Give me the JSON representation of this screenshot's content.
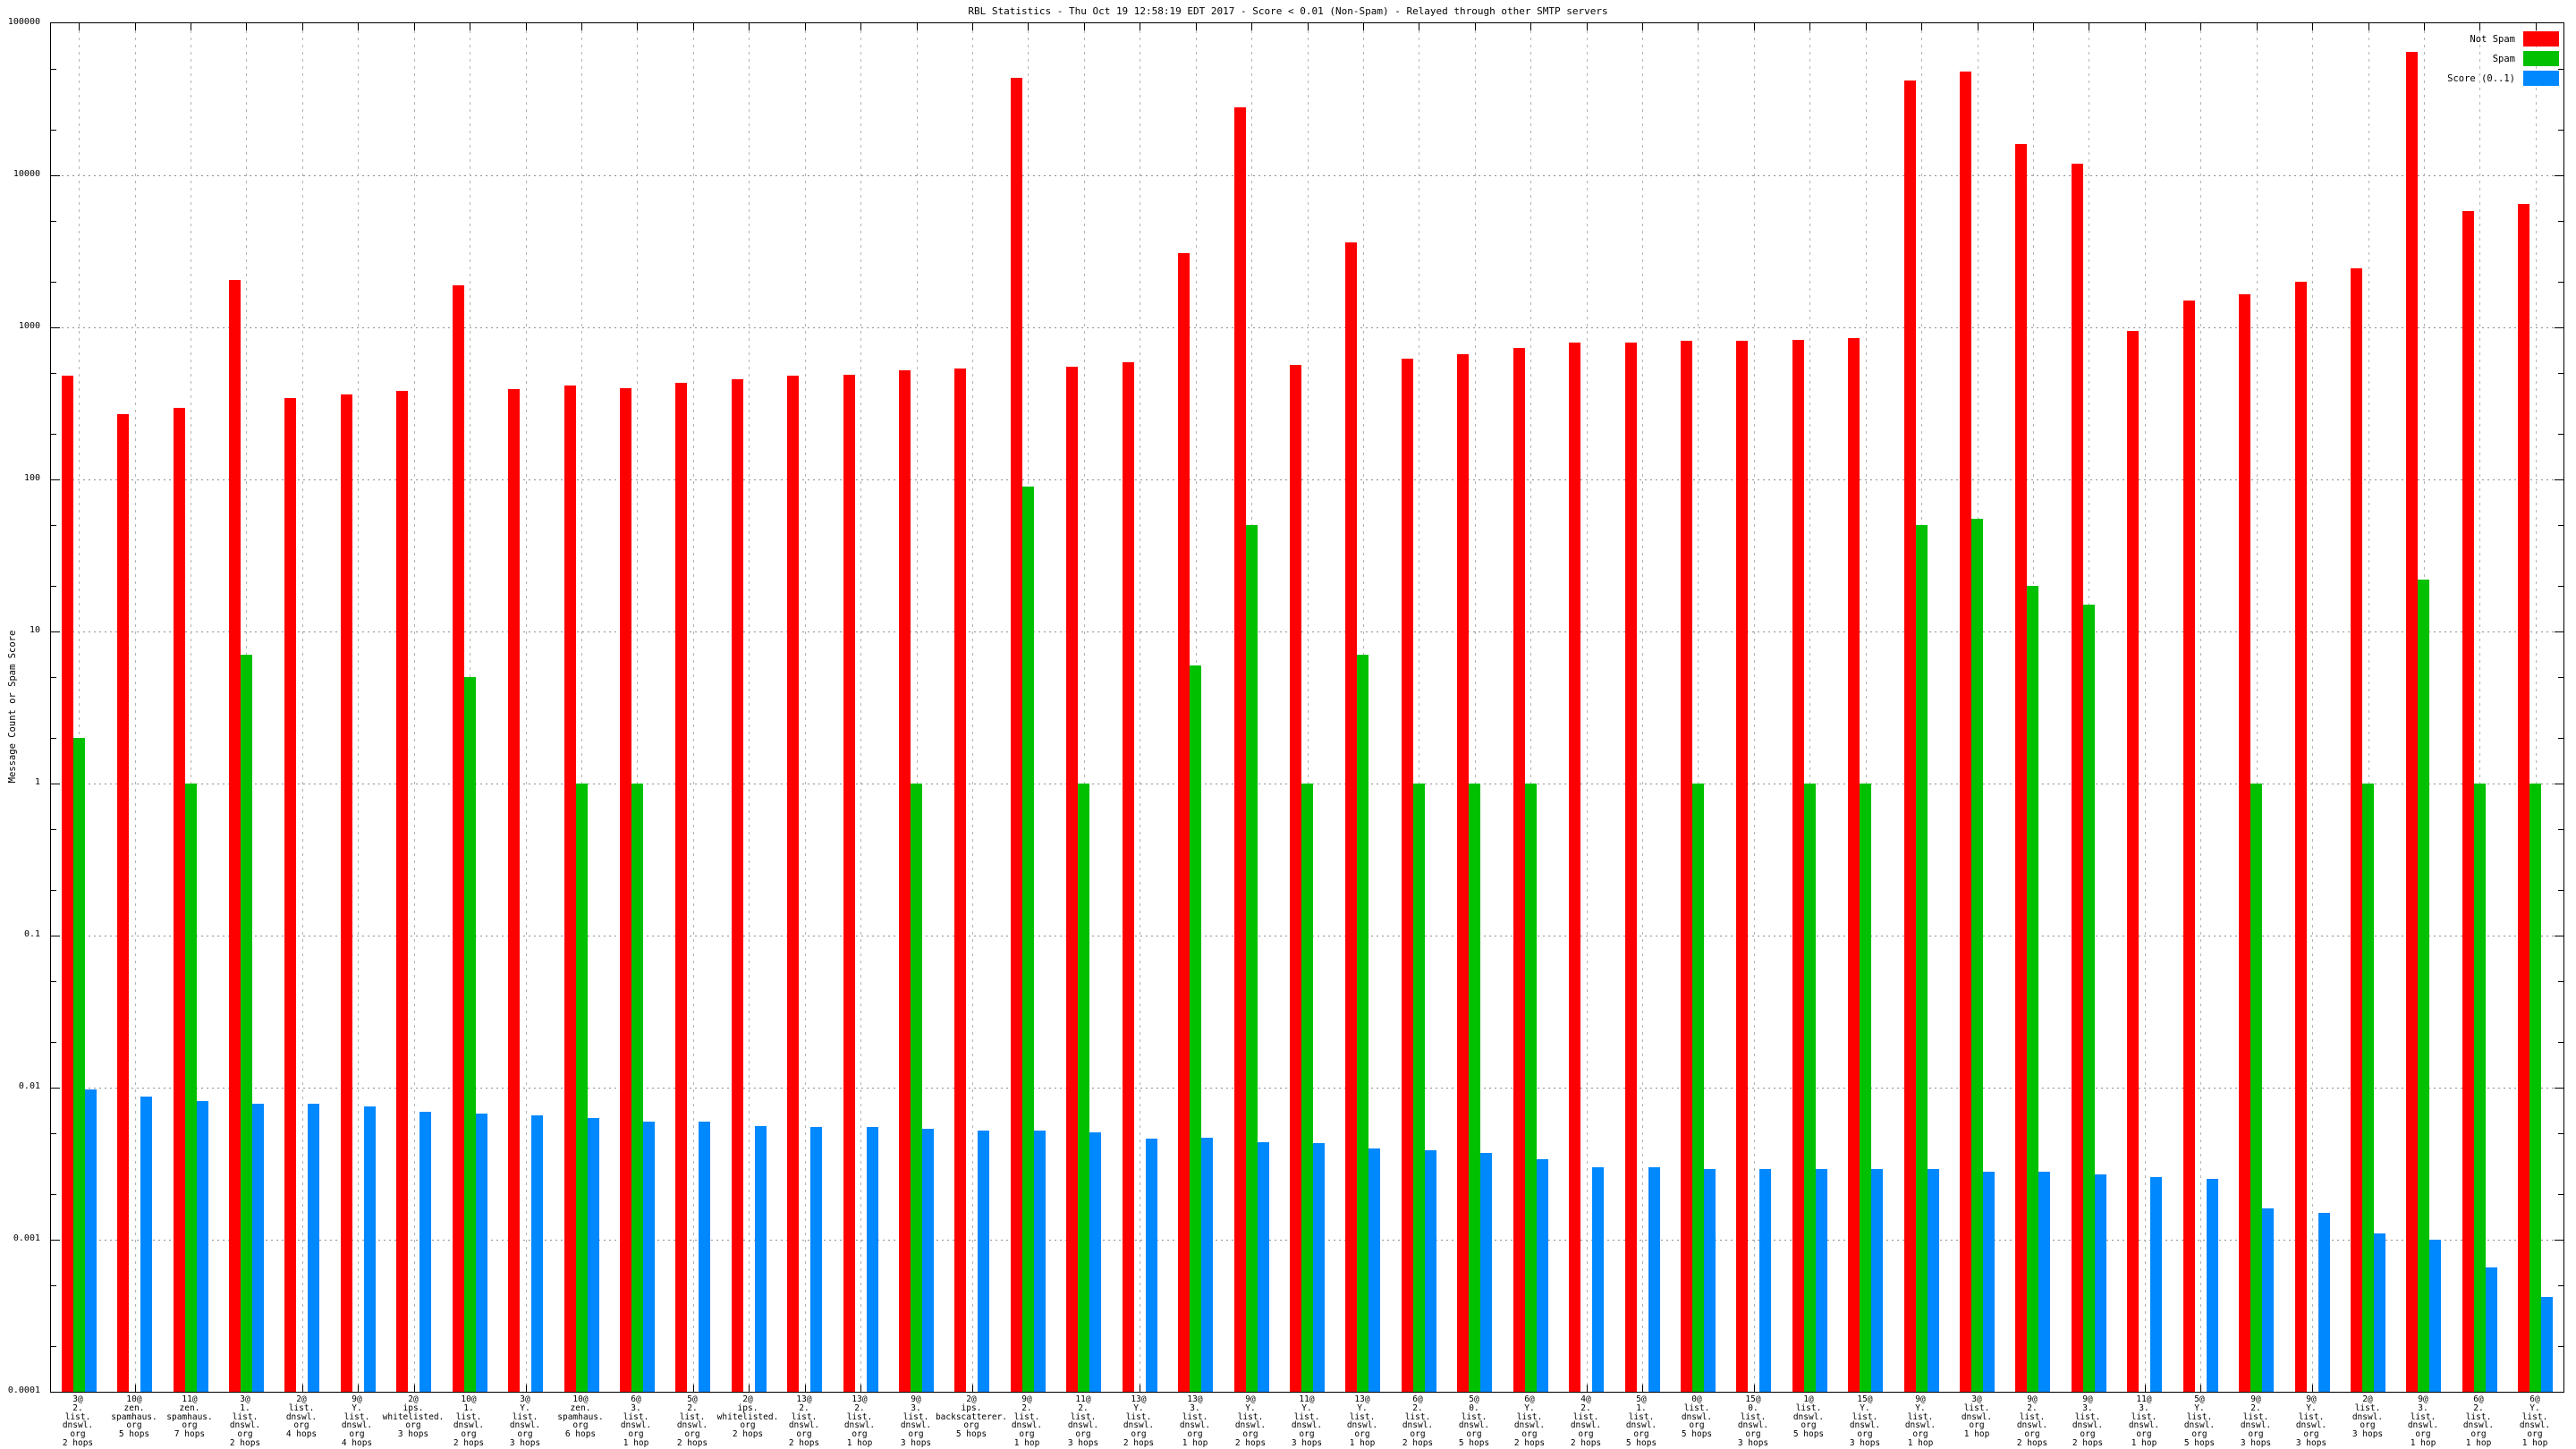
{
  "title": "RBL Statistics - Thu Oct 19 12:58:19 EDT 2017 - Score < 0.01 (Non-Spam) - Relayed through other SMTP servers",
  "y_axis_label": "Message Count or Spam Score",
  "legend": [
    {
      "label": "Not Spam",
      "color": "#ff0000"
    },
    {
      "label": "Spam",
      "color": "#00c000"
    },
    {
      "label": "Score (0..1)",
      "color": "#0088ff"
    }
  ],
  "chart_data": {
    "type": "bar",
    "title": "RBL Statistics - Thu Oct 19 12:58:19 EDT 2017 - Score < 0.01 (Non-Spam) - Relayed through other SMTP servers",
    "xlabel": "",
    "ylabel": "Message Count or Spam Score",
    "y_scale": "log10",
    "ylim": [
      0.0001,
      100000
    ],
    "y_ticks": [
      "100000",
      "10000",
      "1000",
      "100",
      "10",
      "1",
      "0.1",
      "0.01",
      "0.001",
      "0.0001"
    ],
    "grid": true,
    "legend_position": "top-right",
    "categories": [
      "3@\n2.\nlist.\ndnswl.\norg\n2 hops",
      "10@\nzen.\nspamhaus.\norg\n5 hops",
      "11@\nzen.\nspamhaus.\norg\n7 hops",
      "3@\n1.\nlist.\ndnswl.\norg\n2 hops",
      "2@\nlist.\ndnswl.\norg\n4 hops",
      "9@\nY.\nlist.\ndnswl.\norg\n4 hops",
      "2@\nips.\nwhitelisted.\norg\n3 hops",
      "10@\n1.\nlist.\ndnswl.\norg\n2 hops",
      "3@\nY.\nlist.\ndnswl.\norg\n3 hops",
      "10@\nzen.\nspamhaus.\norg\n6 hops",
      "6@\n3.\nlist.\ndnswl.\norg\n1 hop",
      "5@\n2.\nlist.\ndnswl.\norg\n2 hops",
      "2@\nips.\nwhitelisted.\norg\n2 hops",
      "13@\n2.\nlist.\ndnswl.\norg\n2 hops",
      "13@\n2.\nlist.\ndnswl.\norg\n1 hop",
      "9@\n3.\nlist.\ndnswl.\norg\n3 hops",
      "2@\nips.\nbackscatterer.\norg\n5 hops",
      "9@\n2.\nlist.\ndnswl.\norg\n1 hop",
      "11@\n2.\nlist.\ndnswl.\norg\n3 hops",
      "13@\nY.\nlist.\ndnswl.\norg\n2 hops",
      "13@\n3.\nlist.\ndnswl.\norg\n1 hop",
      "9@\nY.\nlist.\ndnswl.\norg\n2 hops",
      "11@\nY.\nlist.\ndnswl.\norg\n3 hops",
      "13@\nY.\nlist.\ndnswl.\norg\n1 hop",
      "6@\n2.\nlist.\ndnswl.\norg\n2 hops",
      "5@\n0.\nlist.\ndnswl.\norg\n5 hops",
      "6@\nY.\nlist.\ndnswl.\norg\n2 hops",
      "4@\n2.\nlist.\ndnswl.\norg\n2 hops",
      "5@\n1.\nlist.\ndnswl.\norg\n5 hops",
      "0@\nlist.\ndnswl.\norg\n5 hops",
      "15@\n0.\nlist.\ndnswl.\norg\n3 hops",
      "1@\nlist.\ndnswl.\norg\n5 hops",
      "15@\nY.\nlist.\ndnswl.\norg\n3 hops",
      "9@\nY.\nlist.\ndnswl.\norg\n1 hop",
      "3@\nlist.\ndnswl.\norg\n1 hop",
      "9@\n2.\nlist.\ndnswl.\norg\n2 hops",
      "9@\n3.\nlist.\ndnswl.\norg\n2 hops",
      "11@\n3.\nlist.\ndnswl.\norg\n1 hop",
      "5@\nY.\nlist.\ndnswl.\norg\n5 hops",
      "9@\n2.\nlist.\ndnswl.\norg\n3 hops",
      "9@\nY.\nlist.\ndnswl.\norg\n3 hops",
      "2@\nlist.\ndnswl.\norg\n3 hops",
      "9@\n3.\nlist.\ndnswl.\norg\n1 hop",
      "6@\n2.\nlist.\ndnswl.\norg\n1 hop",
      "6@\nY.\nlist.\ndnswl.\norg\n1 hop"
    ],
    "series": [
      {
        "name": "Not Spam",
        "color": "#ff0000",
        "values": [
          480,
          270,
          295,
          2050,
          345,
          360,
          385,
          1900,
          395,
          415,
          400,
          430,
          455,
          480,
          490,
          525,
          535,
          44000,
          550,
          590,
          3100,
          28000,
          570,
          3600,
          620,
          670,
          730,
          790,
          800,
          820,
          820,
          830,
          845,
          42000,
          48000,
          16000,
          12000,
          950,
          1500,
          1650,
          2000,
          2450,
          65000,
          5800,
          6500
        ]
      },
      {
        "name": "Spam",
        "color": "#00c000",
        "values": [
          2,
          0,
          1,
          7,
          0,
          0,
          0,
          5,
          0,
          1,
          1,
          0,
          0,
          0,
          0,
          1,
          0,
          90,
          1,
          0,
          6,
          50,
          1,
          7,
          1,
          1,
          1,
          0,
          0,
          1,
          0,
          1,
          1,
          50,
          55,
          20,
          15,
          0,
          0,
          1,
          0,
          1,
          22,
          1,
          1
        ]
      },
      {
        "name": "Score (0..1)",
        "color": "#0088ff",
        "values": [
          0.0097,
          0.0087,
          0.0082,
          0.0078,
          0.0078,
          0.0075,
          0.0069,
          0.0068,
          0.0066,
          0.0063,
          0.006,
          0.006,
          0.0056,
          0.0055,
          0.0055,
          0.0054,
          0.0052,
          0.0052,
          0.0051,
          0.0046,
          0.0047,
          0.0044,
          0.0043,
          0.004,
          0.0039,
          0.0037,
          0.0034,
          0.003,
          0.003,
          0.0029,
          0.0029,
          0.0029,
          0.0029,
          0.0029,
          0.0028,
          0.0028,
          0.0027,
          0.0026,
          0.0025,
          0.0016,
          0.0015,
          0.0011,
          0.001,
          0.00066,
          0.00042
        ]
      }
    ]
  }
}
